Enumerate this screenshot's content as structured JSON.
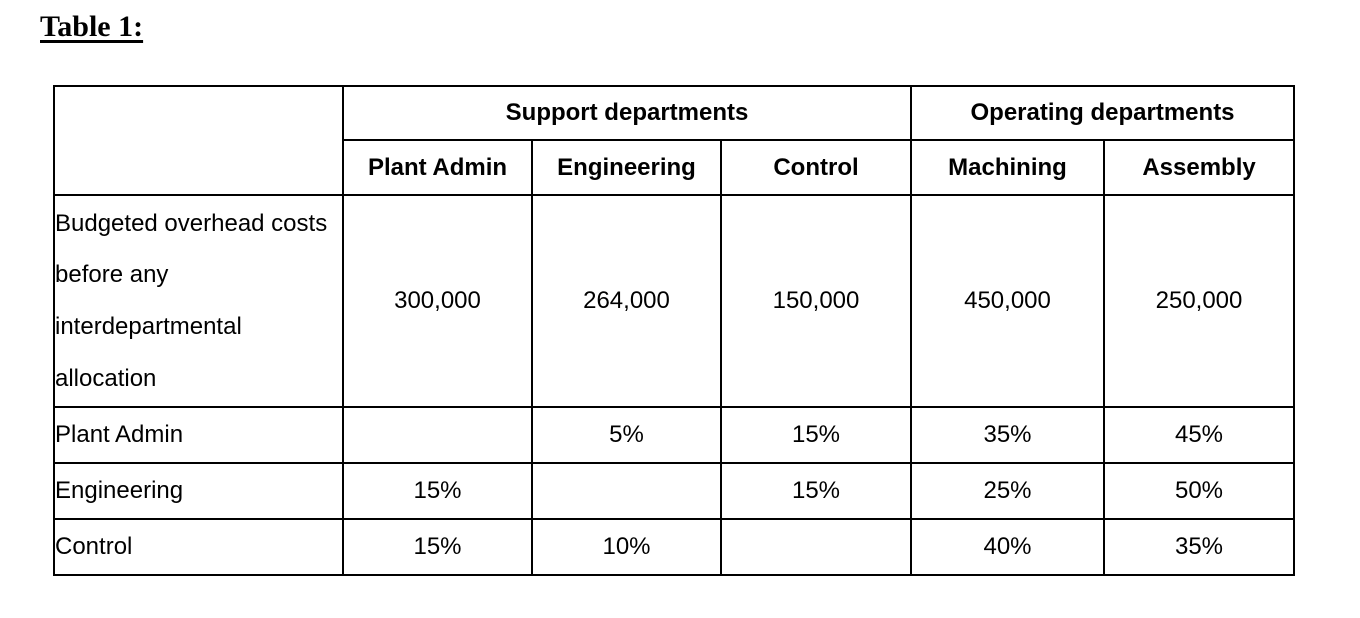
{
  "page": {
    "title": "Table 1:"
  },
  "table": {
    "group_headers": [
      {
        "label": "",
        "colspan": 1
      },
      {
        "label": "Support departments",
        "colspan": 3
      },
      {
        "label": "Operating departments",
        "colspan": 2
      }
    ],
    "column_headers": [
      "Plant Admin",
      "Engineering",
      "Control",
      "Machining",
      "Assembly"
    ],
    "rows": [
      {
        "label": "Budgeted overhead costs before any interdepartmental allocation",
        "values": [
          "300,000",
          "264,000",
          "150,000",
          "450,000",
          "250,000"
        ]
      },
      {
        "label": "Plant Admin",
        "values": [
          "",
          "5%",
          "15%",
          "35%",
          "45%"
        ]
      },
      {
        "label": "Engineering",
        "values": [
          "15%",
          "",
          "15%",
          "25%",
          "50%"
        ]
      },
      {
        "label": "Control",
        "values": [
          "15%",
          "10%",
          "",
          "40%",
          "35%"
        ]
      }
    ],
    "colors": {
      "text": "#000000",
      "border": "#000000",
      "background": "#ffffff"
    }
  }
}
